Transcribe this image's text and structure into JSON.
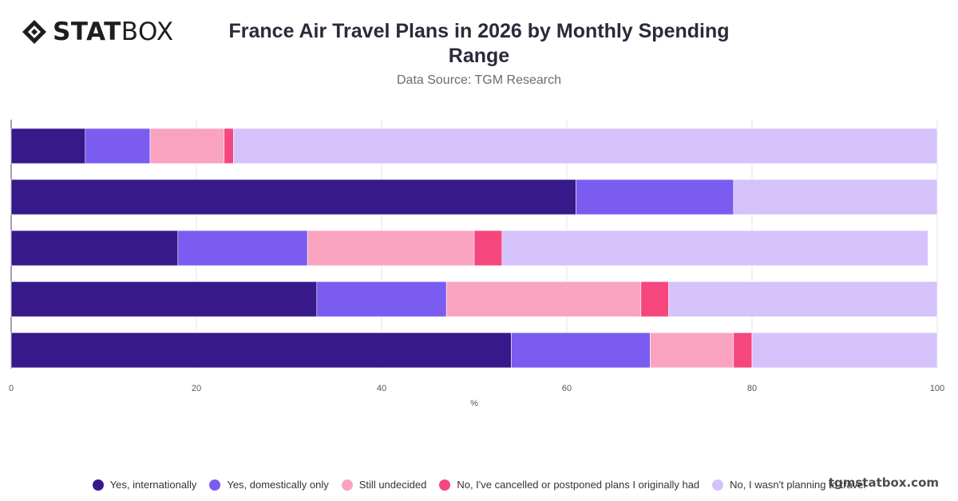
{
  "brand": {
    "logo_strong": "STAT",
    "logo_light": "BOX",
    "watermark": "tgmstatbox.com"
  },
  "chart_data": {
    "type": "bar",
    "orientation": "horizontal",
    "stacked": true,
    "title": "France Air Travel Plans in 2026 by Monthly Spending Range",
    "subtitle": "Data Source: TGM Research",
    "xlabel": "%",
    "ylabel": "",
    "xlim": [
      0,
      100
    ],
    "xticks": [
      0,
      20,
      40,
      60,
      80,
      100
    ],
    "categories": [
      "",
      "",
      "",
      "",
      ""
    ],
    "grid": true,
    "legend_position": "bottom",
    "series": [
      {
        "name": "Yes, internationally",
        "color": "#37198a",
        "values": [
          8,
          61,
          18,
          33,
          54
        ]
      },
      {
        "name": "Yes, domestically only",
        "color": "#7b5cf0",
        "values": [
          7,
          17,
          14,
          14,
          15
        ]
      },
      {
        "name": "Still undecided",
        "color": "#f9a3c1",
        "values": [
          8,
          0,
          18,
          21,
          9
        ]
      },
      {
        "name": "No, I've cancelled or postponed plans I originally had",
        "color": "#f5467e",
        "values": [
          1,
          0,
          3,
          3,
          2
        ]
      },
      {
        "name": "No, I wasn't planning to travel",
        "color": "#d6c2fb",
        "values": [
          76,
          22,
          46,
          29,
          20
        ]
      }
    ]
  }
}
